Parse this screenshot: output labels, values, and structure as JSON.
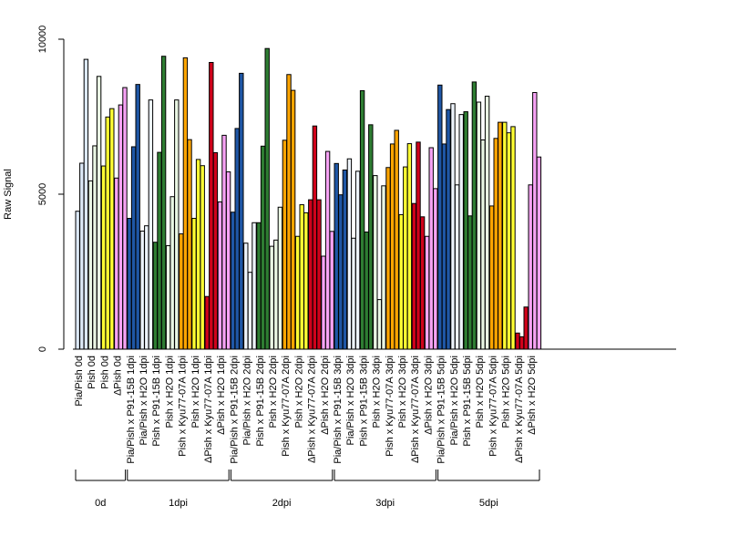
{
  "colors": {
    "Pia/Pish": "#dce9f7",
    "Pish": "#eaf7e4",
    "Pish-yellow": "#ffff33",
    "ΔPish": "#f7a3f5",
    "P91-15B": "#1f57a6",
    "H2O": "#eef4fb",
    "Pish x P91-15B": "#2e7d32",
    "Pish x H2O": "#eaf7e4",
    "Kyu77-07A": "#ffa500",
    "ΔPish x Kyu77-07A": "#d0021b",
    "ΔPish x H2O": "#f7a3f5"
  },
  "chart_data": {
    "type": "bar",
    "ylabel": "Raw Signal",
    "ylim": [
      0,
      10000
    ],
    "yticks": [
      "0",
      "5000",
      "10000"
    ],
    "categories": [
      "Pia/Pish 0d",
      "Pish 0d",
      "Pish 0d",
      "ΔPish 0d",
      "Pia/Pish x P91-15B 1dpi",
      "Pia/Pish x H2O 1dpi",
      "Pish x P91-15B 1dpi",
      "Pish x H2O 1dpi",
      "Pish x Kyu77-07A 1dpi",
      "Pish x H2O 1dpi",
      "ΔPish x Kyu77-07A 1dpi",
      "ΔPish x H2O 1dpi",
      "Pia/Pish x P91-15B 2dpi",
      "Pia/Pish x H2O 2dpi",
      "Pish x P91-15B 2dpi",
      "Pish x H2O 2dpi",
      "Pish x Kyu77-07A 2dpi",
      "Pish x H2O 2dpi",
      "ΔPish x Kyu77-07A 2dpi",
      "ΔPish x H2O 2dpi",
      "Pia/Pish x P91-15B 3dpi",
      "Pia/Pish x H2O 3dpi",
      "Pish x P91-15B 3dpi",
      "Pish x H2O 3dpi",
      "Pish x Kyu77-07A 3dpi",
      "Pish x H2O 3dpi",
      "ΔPish x Kyu77-07A 3dpi",
      "ΔPish x H2O 3dpi",
      "Pia/Pish x P91-15B 5dpi",
      "Pia/Pish x H2O 5dpi",
      "Pish x P91-15B 5dpi",
      "Pish x H2O 5dpi",
      "Pish x Kyu77-07A 5dpi",
      "Pish x H2O 5dpi",
      "ΔPish x Kyu77-07A 5dpi",
      "ΔPish x H2O 5dpi"
    ],
    "colorKeys": [
      "Pia/Pish",
      "Pish",
      "Pish-yellow",
      "ΔPish",
      "P91-15B",
      "H2O",
      "Pish x P91-15B",
      "Pish x H2O",
      "Kyu77-07A",
      "Pish-yellow",
      "ΔPish x Kyu77-07A",
      "ΔPish x H2O",
      "P91-15B",
      "H2O",
      "Pish x P91-15B",
      "Pish x H2O",
      "Kyu77-07A",
      "Pish-yellow",
      "ΔPish x Kyu77-07A",
      "ΔPish x H2O",
      "P91-15B",
      "H2O",
      "Pish x P91-15B",
      "Pish x H2O",
      "Kyu77-07A",
      "Pish-yellow",
      "ΔPish x Kyu77-07A",
      "ΔPish x H2O",
      "P91-15B",
      "H2O",
      "Pish x P91-15B",
      "Pish x H2O",
      "Kyu77-07A",
      "Pish-yellow",
      "ΔPish x Kyu77-07A",
      "ΔPish x H2O"
    ],
    "values": [
      [
        4450,
        6000,
        9350
      ],
      [
        5430,
        6560,
        8800
      ],
      [
        5910,
        7490,
        7760
      ],
      [
        5520,
        7880,
        8440
      ],
      [
        4220,
        6530,
        8540
      ],
      [
        3810,
        3980,
        8040
      ],
      [
        3450,
        6350,
        9450
      ],
      [
        3340,
        4920,
        8040
      ],
      [
        3720,
        9400,
        6760
      ],
      [
        4220,
        6120,
        5920
      ],
      [
        1700,
        9250,
        6340
      ],
      [
        4750,
        6900,
        5720
      ],
      [
        4420,
        7120,
        8900
      ],
      [
        3420,
        2480,
        4080
      ],
      [
        4080,
        6550,
        9700
      ],
      [
        3320,
        3520,
        4580
      ],
      [
        6740,
        8860,
        8350
      ],
      [
        3640,
        4660,
        4400
      ],
      [
        4820,
        7200,
        4820
      ],
      [
        3000,
        6380,
        3800
      ],
      [
        5990,
        4980,
        5780
      ],
      [
        6140,
        3580,
        5740
      ],
      [
        8340,
        3780,
        7240
      ],
      [
        5600,
        1600,
        5270
      ],
      [
        5860,
        6620,
        7060
      ],
      [
        4340,
        5880,
        6630
      ],
      [
        4700,
        6680,
        4270
      ],
      [
        3640,
        6500,
        5180
      ],
      [
        8520,
        6620,
        7730
      ],
      [
        7920,
        5300,
        7570
      ],
      [
        7660,
        4300,
        8620
      ],
      [
        7970,
        6750,
        8160
      ],
      [
        4620,
        6800,
        7320
      ],
      [
        7320,
        6980,
        7180
      ],
      [
        520,
        400,
        1360
      ],
      [
        5300,
        8280,
        6200
      ]
    ],
    "groups": [
      {
        "label": "0d",
        "start": 0,
        "end": 3
      },
      {
        "label": "1dpi",
        "start": 4,
        "end": 11
      },
      {
        "label": "2dpi",
        "start": 12,
        "end": 19
      },
      {
        "label": "3dpi",
        "start": 20,
        "end": 27
      },
      {
        "label": "5dpi",
        "start": 28,
        "end": 35
      }
    ]
  }
}
